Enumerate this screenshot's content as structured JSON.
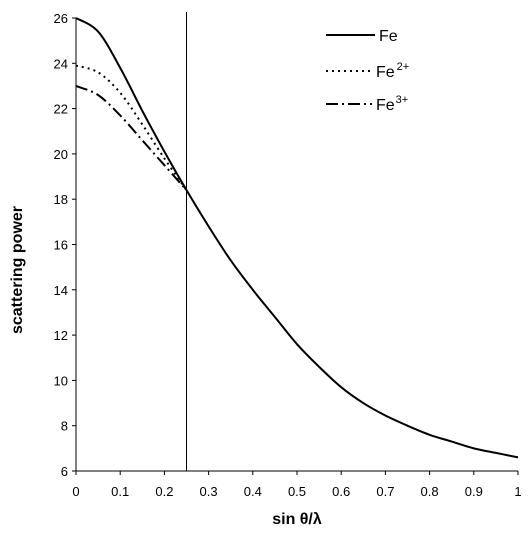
{
  "chart_data": {
    "type": "line",
    "xlabel": "sin θ/λ",
    "ylabel": "scattering power",
    "xlim": [
      0,
      1
    ],
    "ylim": [
      6,
      26
    ],
    "xticks": [
      "0",
      "0.1",
      "0.2",
      "0.3",
      "0.4",
      "0.5",
      "0.6",
      "0.7",
      "0.8",
      "0.9",
      "1"
    ],
    "yticks": [
      "6",
      "8",
      "10",
      "12",
      "14",
      "16",
      "18",
      "20",
      "22",
      "24",
      "26"
    ],
    "grid": false,
    "legend_position": "top-right",
    "vline_x": 0.25,
    "legend": [
      {
        "base": "Fe",
        "sup": ""
      },
      {
        "base": "Fe",
        "sup": "2+"
      },
      {
        "base": "Fe",
        "sup": "3+"
      }
    ],
    "series": [
      {
        "name": "Fe",
        "style": "solid",
        "x": [
          0,
          0.05,
          0.1,
          0.15,
          0.2,
          0.25,
          0.3,
          0.35,
          0.4,
          0.45,
          0.5,
          0.55,
          0.6,
          0.65,
          0.7,
          0.75,
          0.8,
          0.85,
          0.9,
          0.95,
          1.0
        ],
        "y": [
          26,
          25.4,
          23.8,
          21.9,
          20.1,
          18.4,
          16.8,
          15.3,
          14.0,
          12.8,
          11.6,
          10.6,
          9.7,
          9.0,
          8.45,
          8.0,
          7.6,
          7.3,
          7.0,
          6.8,
          6.6
        ]
      },
      {
        "name": "Fe2+",
        "style": "dotted",
        "x": [
          0,
          0.05,
          0.1,
          0.15,
          0.2,
          0.25
        ],
        "y": [
          23.9,
          23.6,
          22.7,
          21.3,
          19.8,
          18.4
        ]
      },
      {
        "name": "Fe3+",
        "style": "dashdot",
        "x": [
          0,
          0.05,
          0.1,
          0.15,
          0.2,
          0.25
        ],
        "y": [
          23.0,
          22.6,
          21.7,
          20.6,
          19.5,
          18.4
        ]
      }
    ]
  }
}
